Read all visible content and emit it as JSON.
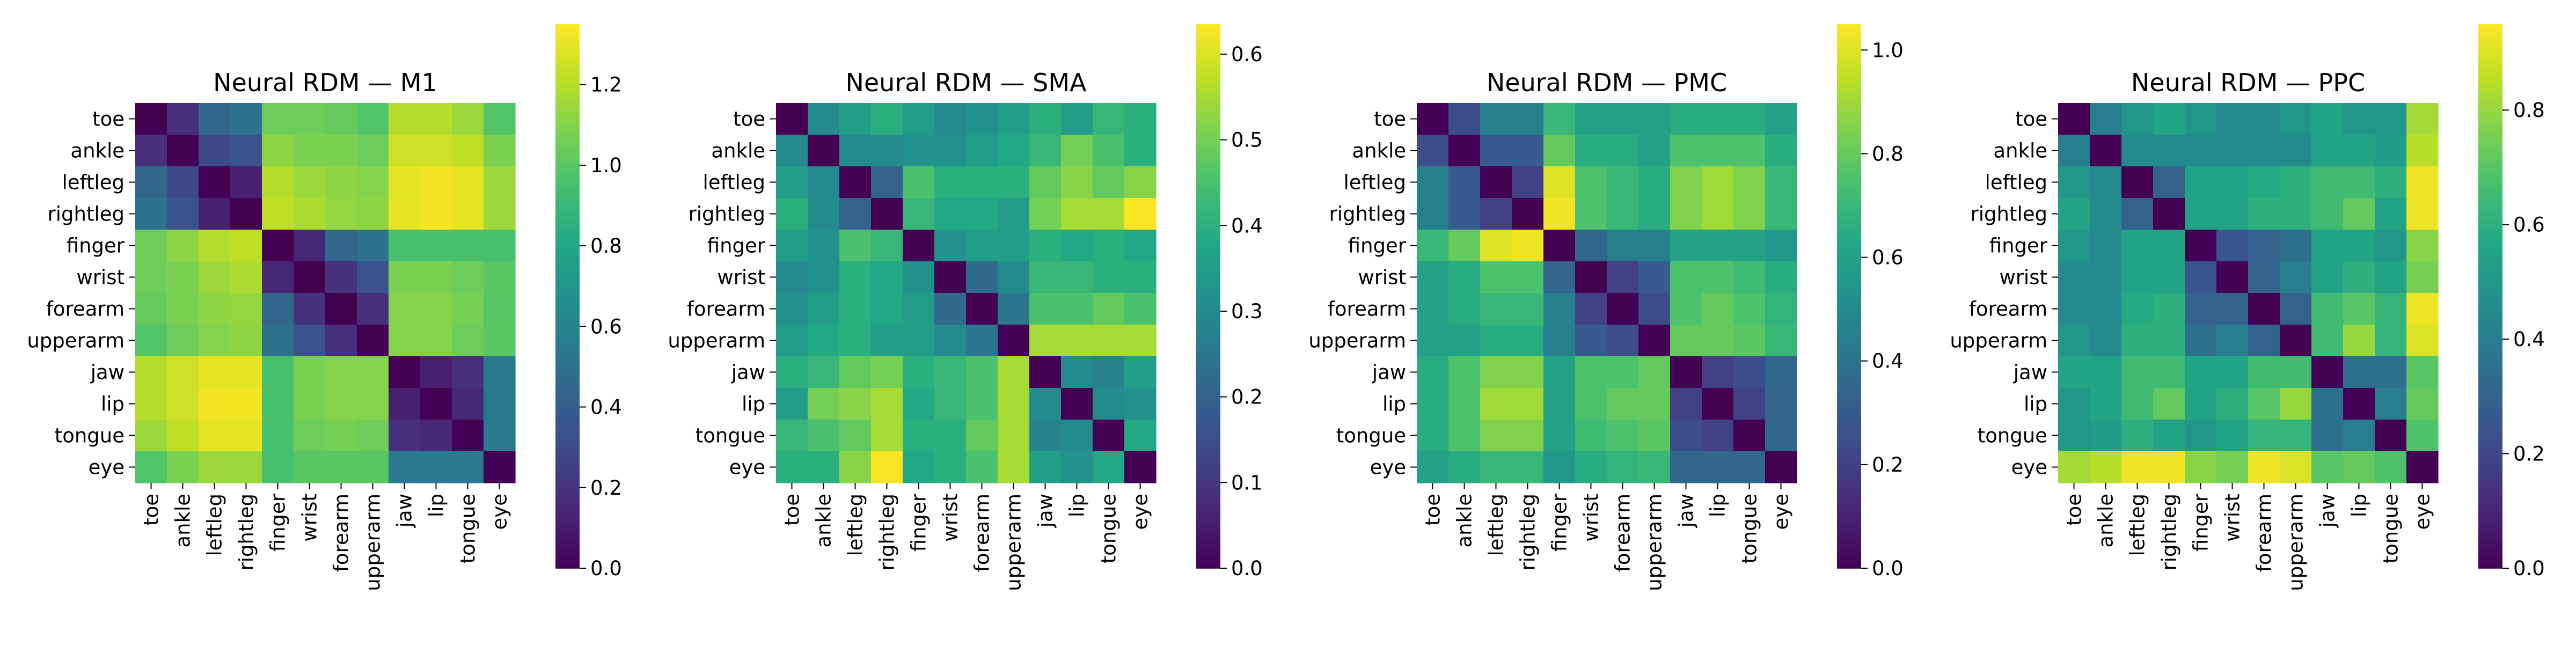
{
  "chart_data": [
    {
      "type": "heatmap",
      "title": "Neural RDM — M1",
      "row_labels": [
        "toe",
        "ankle",
        "leftleg",
        "rightleg",
        "finger",
        "wrist",
        "forearm",
        "upperarm",
        "jaw",
        "lip",
        "tongue",
        "eye"
      ],
      "col_labels": [
        "toe",
        "ankle",
        "leftleg",
        "rightleg",
        "finger",
        "wrist",
        "forearm",
        "upperarm",
        "jaw",
        "lip",
        "tongue",
        "eye"
      ],
      "colorbar": {
        "colormap": "viridis",
        "vmin": 0.0,
        "vmax": 1.35,
        "ticks": [
          0.0,
          0.2,
          0.4,
          0.6,
          0.8,
          1.0,
          1.2
        ],
        "tick_labels": [
          "0.0",
          "0.2",
          "0.4",
          "0.6",
          "0.8",
          "1.0",
          "1.2"
        ]
      },
      "values": [
        [
          0.0,
          0.18,
          0.45,
          0.5,
          1.05,
          1.05,
          1.03,
          0.98,
          1.2,
          1.2,
          1.15,
          0.98
        ],
        [
          0.18,
          0.0,
          0.3,
          0.35,
          1.12,
          1.08,
          1.08,
          1.05,
          1.25,
          1.25,
          1.22,
          1.08
        ],
        [
          0.45,
          0.3,
          0.0,
          0.12,
          1.2,
          1.15,
          1.12,
          1.1,
          1.3,
          1.33,
          1.3,
          1.15
        ],
        [
          0.5,
          0.35,
          0.12,
          0.0,
          1.22,
          1.18,
          1.13,
          1.12,
          1.3,
          1.33,
          1.3,
          1.15
        ],
        [
          1.05,
          1.12,
          1.2,
          1.22,
          0.0,
          0.15,
          0.45,
          0.5,
          0.95,
          0.95,
          0.95,
          0.95
        ],
        [
          1.05,
          1.08,
          1.15,
          1.18,
          0.15,
          0.0,
          0.2,
          0.35,
          1.08,
          1.08,
          1.05,
          1.0
        ],
        [
          1.03,
          1.08,
          1.12,
          1.13,
          0.45,
          0.2,
          0.0,
          0.18,
          1.1,
          1.1,
          1.07,
          1.0
        ],
        [
          0.98,
          1.05,
          1.1,
          1.12,
          0.5,
          0.35,
          0.18,
          0.0,
          1.1,
          1.1,
          1.05,
          1.0
        ],
        [
          1.2,
          1.25,
          1.3,
          1.3,
          0.95,
          1.08,
          1.1,
          1.1,
          0.0,
          0.12,
          0.18,
          0.55
        ],
        [
          1.2,
          1.25,
          1.33,
          1.33,
          0.95,
          1.08,
          1.1,
          1.1,
          0.12,
          0.0,
          0.15,
          0.55
        ],
        [
          1.15,
          1.22,
          1.3,
          1.3,
          0.95,
          1.05,
          1.07,
          1.05,
          0.18,
          0.15,
          0.0,
          0.55
        ],
        [
          0.98,
          1.08,
          1.15,
          1.15,
          0.95,
          1.0,
          1.0,
          1.0,
          0.55,
          0.55,
          0.55,
          0.0
        ]
      ]
    },
    {
      "type": "heatmap",
      "title": "Neural RDM — SMA",
      "row_labels": [
        "toe",
        "ankle",
        "leftleg",
        "rightleg",
        "finger",
        "wrist",
        "forearm",
        "upperarm",
        "jaw",
        "lip",
        "tongue",
        "eye"
      ],
      "col_labels": [
        "toe",
        "ankle",
        "leftleg",
        "rightleg",
        "finger",
        "wrist",
        "forearm",
        "upperarm",
        "jaw",
        "lip",
        "tongue",
        "eye"
      ],
      "colorbar": {
        "colormap": "viridis",
        "vmin": 0.0,
        "vmax": 0.635,
        "ticks": [
          0.0,
          0.1,
          0.2,
          0.3,
          0.4,
          0.5,
          0.6
        ],
        "tick_labels": [
          "0.0",
          "0.1",
          "0.2",
          "0.3",
          "0.4",
          "0.5",
          "0.6"
        ]
      },
      "values": [
        [
          0.0,
          0.3,
          0.35,
          0.4,
          0.35,
          0.3,
          0.32,
          0.35,
          0.4,
          0.35,
          0.42,
          0.4
        ],
        [
          0.3,
          0.0,
          0.3,
          0.3,
          0.32,
          0.32,
          0.35,
          0.38,
          0.42,
          0.5,
          0.45,
          0.4
        ],
        [
          0.35,
          0.3,
          0.0,
          0.2,
          0.45,
          0.4,
          0.4,
          0.4,
          0.48,
          0.52,
          0.48,
          0.52
        ],
        [
          0.4,
          0.3,
          0.2,
          0.0,
          0.42,
          0.38,
          0.38,
          0.35,
          0.5,
          0.55,
          0.55,
          0.63
        ],
        [
          0.35,
          0.32,
          0.45,
          0.42,
          0.0,
          0.32,
          0.35,
          0.35,
          0.4,
          0.38,
          0.4,
          0.38
        ],
        [
          0.3,
          0.32,
          0.4,
          0.38,
          0.32,
          0.0,
          0.22,
          0.3,
          0.42,
          0.42,
          0.4,
          0.4
        ],
        [
          0.32,
          0.35,
          0.4,
          0.38,
          0.35,
          0.22,
          0.0,
          0.25,
          0.45,
          0.45,
          0.48,
          0.45
        ],
        [
          0.35,
          0.38,
          0.4,
          0.35,
          0.35,
          0.3,
          0.25,
          0.0,
          0.55,
          0.55,
          0.55,
          0.55
        ],
        [
          0.4,
          0.42,
          0.48,
          0.5,
          0.4,
          0.42,
          0.45,
          0.55,
          0.0,
          0.3,
          0.28,
          0.35
        ],
        [
          0.35,
          0.5,
          0.52,
          0.55,
          0.38,
          0.42,
          0.45,
          0.55,
          0.3,
          0.0,
          0.3,
          0.32
        ],
        [
          0.42,
          0.45,
          0.48,
          0.55,
          0.4,
          0.4,
          0.48,
          0.55,
          0.28,
          0.3,
          0.0,
          0.38
        ],
        [
          0.4,
          0.4,
          0.52,
          0.63,
          0.38,
          0.4,
          0.45,
          0.55,
          0.35,
          0.32,
          0.38,
          0.0
        ]
      ]
    },
    {
      "type": "heatmap",
      "title": "Neural RDM — PMC",
      "row_labels": [
        "toe",
        "ankle",
        "leftleg",
        "rightleg",
        "finger",
        "wrist",
        "forearm",
        "upperarm",
        "jaw",
        "lip",
        "tongue",
        "eye"
      ],
      "col_labels": [
        "toe",
        "ankle",
        "leftleg",
        "rightleg",
        "finger",
        "wrist",
        "forearm",
        "upperarm",
        "jaw",
        "lip",
        "tongue",
        "eye"
      ],
      "colorbar": {
        "colormap": "viridis",
        "vmin": 0.0,
        "vmax": 1.05,
        "ticks": [
          0.0,
          0.2,
          0.4,
          0.6,
          0.8,
          1.0
        ],
        "tick_labels": [
          "0.0",
          "0.2",
          "0.4",
          "0.6",
          "0.8",
          "1.0"
        ]
      },
      "values": [
        [
          0.0,
          0.25,
          0.45,
          0.45,
          0.7,
          0.6,
          0.6,
          0.6,
          0.65,
          0.65,
          0.65,
          0.6
        ],
        [
          0.25,
          0.0,
          0.3,
          0.3,
          0.8,
          0.65,
          0.65,
          0.6,
          0.75,
          0.75,
          0.75,
          0.65
        ],
        [
          0.45,
          0.3,
          0.0,
          0.2,
          1.0,
          0.75,
          0.7,
          0.65,
          0.85,
          0.9,
          0.85,
          0.7
        ],
        [
          0.45,
          0.3,
          0.2,
          0.0,
          1.03,
          0.75,
          0.7,
          0.65,
          0.85,
          0.9,
          0.85,
          0.7
        ],
        [
          0.7,
          0.8,
          1.0,
          1.03,
          0.0,
          0.35,
          0.45,
          0.45,
          0.6,
          0.6,
          0.6,
          0.55
        ],
        [
          0.6,
          0.65,
          0.75,
          0.75,
          0.35,
          0.0,
          0.2,
          0.3,
          0.75,
          0.75,
          0.72,
          0.65
        ],
        [
          0.6,
          0.65,
          0.7,
          0.7,
          0.45,
          0.2,
          0.0,
          0.25,
          0.75,
          0.8,
          0.75,
          0.68
        ],
        [
          0.6,
          0.6,
          0.65,
          0.65,
          0.45,
          0.3,
          0.25,
          0.0,
          0.8,
          0.8,
          0.78,
          0.7
        ],
        [
          0.65,
          0.75,
          0.85,
          0.85,
          0.6,
          0.75,
          0.75,
          0.8,
          0.0,
          0.2,
          0.25,
          0.35
        ],
        [
          0.65,
          0.75,
          0.9,
          0.9,
          0.6,
          0.75,
          0.8,
          0.8,
          0.2,
          0.0,
          0.2,
          0.35
        ],
        [
          0.65,
          0.75,
          0.85,
          0.85,
          0.6,
          0.72,
          0.75,
          0.78,
          0.25,
          0.2,
          0.0,
          0.35
        ],
        [
          0.6,
          0.65,
          0.7,
          0.7,
          0.55,
          0.65,
          0.68,
          0.7,
          0.35,
          0.35,
          0.35,
          0.0
        ]
      ]
    },
    {
      "type": "heatmap",
      "title": "Neural RDM — PPC",
      "row_labels": [
        "toe",
        "ankle",
        "leftleg",
        "rightleg",
        "finger",
        "wrist",
        "forearm",
        "upperarm",
        "jaw",
        "lip",
        "tongue",
        "eye"
      ],
      "col_labels": [
        "toe",
        "ankle",
        "leftleg",
        "rightleg",
        "finger",
        "wrist",
        "forearm",
        "upperarm",
        "jaw",
        "lip",
        "tongue",
        "eye"
      ],
      "colorbar": {
        "colormap": "viridis",
        "vmin": 0.0,
        "vmax": 0.95,
        "ticks": [
          0.0,
          0.2,
          0.4,
          0.6,
          0.8
        ],
        "tick_labels": [
          "0.0",
          "0.2",
          "0.4",
          "0.6",
          "0.8"
        ]
      },
      "values": [
        [
          0.0,
          0.4,
          0.5,
          0.55,
          0.5,
          0.45,
          0.45,
          0.5,
          0.55,
          0.5,
          0.5,
          0.82
        ],
        [
          0.4,
          0.0,
          0.45,
          0.45,
          0.45,
          0.45,
          0.45,
          0.45,
          0.55,
          0.55,
          0.52,
          0.85
        ],
        [
          0.5,
          0.45,
          0.0,
          0.3,
          0.55,
          0.55,
          0.58,
          0.6,
          0.65,
          0.65,
          0.6,
          0.93
        ],
        [
          0.55,
          0.45,
          0.3,
          0.0,
          0.55,
          0.55,
          0.6,
          0.6,
          0.65,
          0.72,
          0.55,
          0.93
        ],
        [
          0.5,
          0.45,
          0.55,
          0.55,
          0.0,
          0.25,
          0.3,
          0.35,
          0.55,
          0.55,
          0.5,
          0.78
        ],
        [
          0.45,
          0.45,
          0.55,
          0.55,
          0.25,
          0.0,
          0.3,
          0.4,
          0.55,
          0.6,
          0.55,
          0.75
        ],
        [
          0.45,
          0.45,
          0.58,
          0.6,
          0.3,
          0.3,
          0.0,
          0.3,
          0.65,
          0.7,
          0.62,
          0.93
        ],
        [
          0.5,
          0.45,
          0.6,
          0.6,
          0.35,
          0.4,
          0.3,
          0.0,
          0.65,
          0.8,
          0.62,
          0.9
        ],
        [
          0.55,
          0.55,
          0.65,
          0.65,
          0.55,
          0.55,
          0.65,
          0.65,
          0.0,
          0.35,
          0.35,
          0.7
        ],
        [
          0.5,
          0.55,
          0.65,
          0.72,
          0.55,
          0.6,
          0.7,
          0.8,
          0.35,
          0.0,
          0.4,
          0.72
        ],
        [
          0.5,
          0.52,
          0.6,
          0.55,
          0.5,
          0.55,
          0.62,
          0.62,
          0.35,
          0.4,
          0.0,
          0.68
        ],
        [
          0.82,
          0.85,
          0.93,
          0.93,
          0.78,
          0.75,
          0.93,
          0.9,
          0.7,
          0.72,
          0.68,
          0.0
        ]
      ]
    }
  ]
}
